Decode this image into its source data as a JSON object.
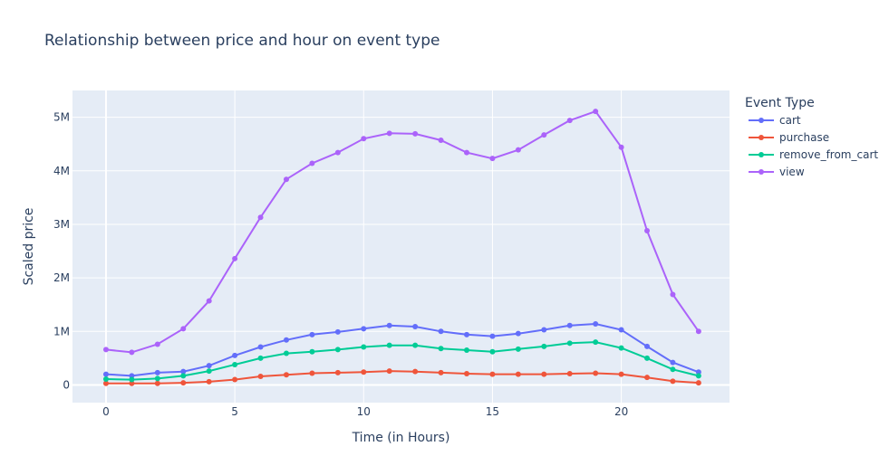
{
  "chart_data": {
    "type": "line",
    "title": "Relationship between price and hour on event type",
    "xlabel": "Time (in Hours)",
    "ylabel": "Scaled price",
    "xlim": [
      -1.3,
      24.2
    ],
    "ylim": [
      -330000,
      5500000
    ],
    "x_ticks": [
      0,
      5,
      10,
      15,
      20
    ],
    "y_ticks": [
      0,
      1000000,
      2000000,
      3000000,
      4000000,
      5000000
    ],
    "y_tick_labels": [
      "0",
      "1M",
      "2M",
      "3M",
      "4M",
      "5M"
    ],
    "grid": true,
    "legend": {
      "title": "Event Type",
      "placement": "right",
      "labels": [
        "cart",
        "purchase",
        "remove_from_cart",
        "view"
      ]
    },
    "x": [
      0,
      1,
      2,
      3,
      4,
      5,
      6,
      7,
      8,
      9,
      10,
      11,
      12,
      13,
      14,
      15,
      16,
      17,
      18,
      19,
      20,
      21,
      22,
      23
    ],
    "series": [
      {
        "name": "cart",
        "color": "#636efa",
        "values": [
          200000,
          170000,
          230000,
          250000,
          360000,
          550000,
          710000,
          840000,
          940000,
          990000,
          1050000,
          1110000,
          1090000,
          1000000,
          940000,
          910000,
          960000,
          1030000,
          1110000,
          1140000,
          1030000,
          720000,
          420000,
          240000
        ]
      },
      {
        "name": "purchase",
        "color": "#ef553b",
        "values": [
          30000,
          30000,
          30000,
          40000,
          60000,
          100000,
          160000,
          190000,
          220000,
          230000,
          240000,
          260000,
          250000,
          230000,
          210000,
          200000,
          200000,
          200000,
          210000,
          220000,
          200000,
          140000,
          70000,
          40000
        ]
      },
      {
        "name": "remove_from_cart",
        "color": "#00cc96",
        "values": [
          110000,
          100000,
          120000,
          170000,
          260000,
          380000,
          500000,
          590000,
          620000,
          660000,
          710000,
          740000,
          740000,
          680000,
          650000,
          620000,
          670000,
          720000,
          780000,
          800000,
          690000,
          500000,
          290000,
          170000
        ]
      },
      {
        "name": "view",
        "color": "#ab63fa",
        "values": [
          660000,
          610000,
          760000,
          1050000,
          1570000,
          2360000,
          3130000,
          3840000,
          4140000,
          4340000,
          4600000,
          4700000,
          4690000,
          4570000,
          4340000,
          4230000,
          4390000,
          4670000,
          4940000,
          5110000,
          4440000,
          2880000,
          1690000,
          1000000
        ]
      }
    ]
  }
}
